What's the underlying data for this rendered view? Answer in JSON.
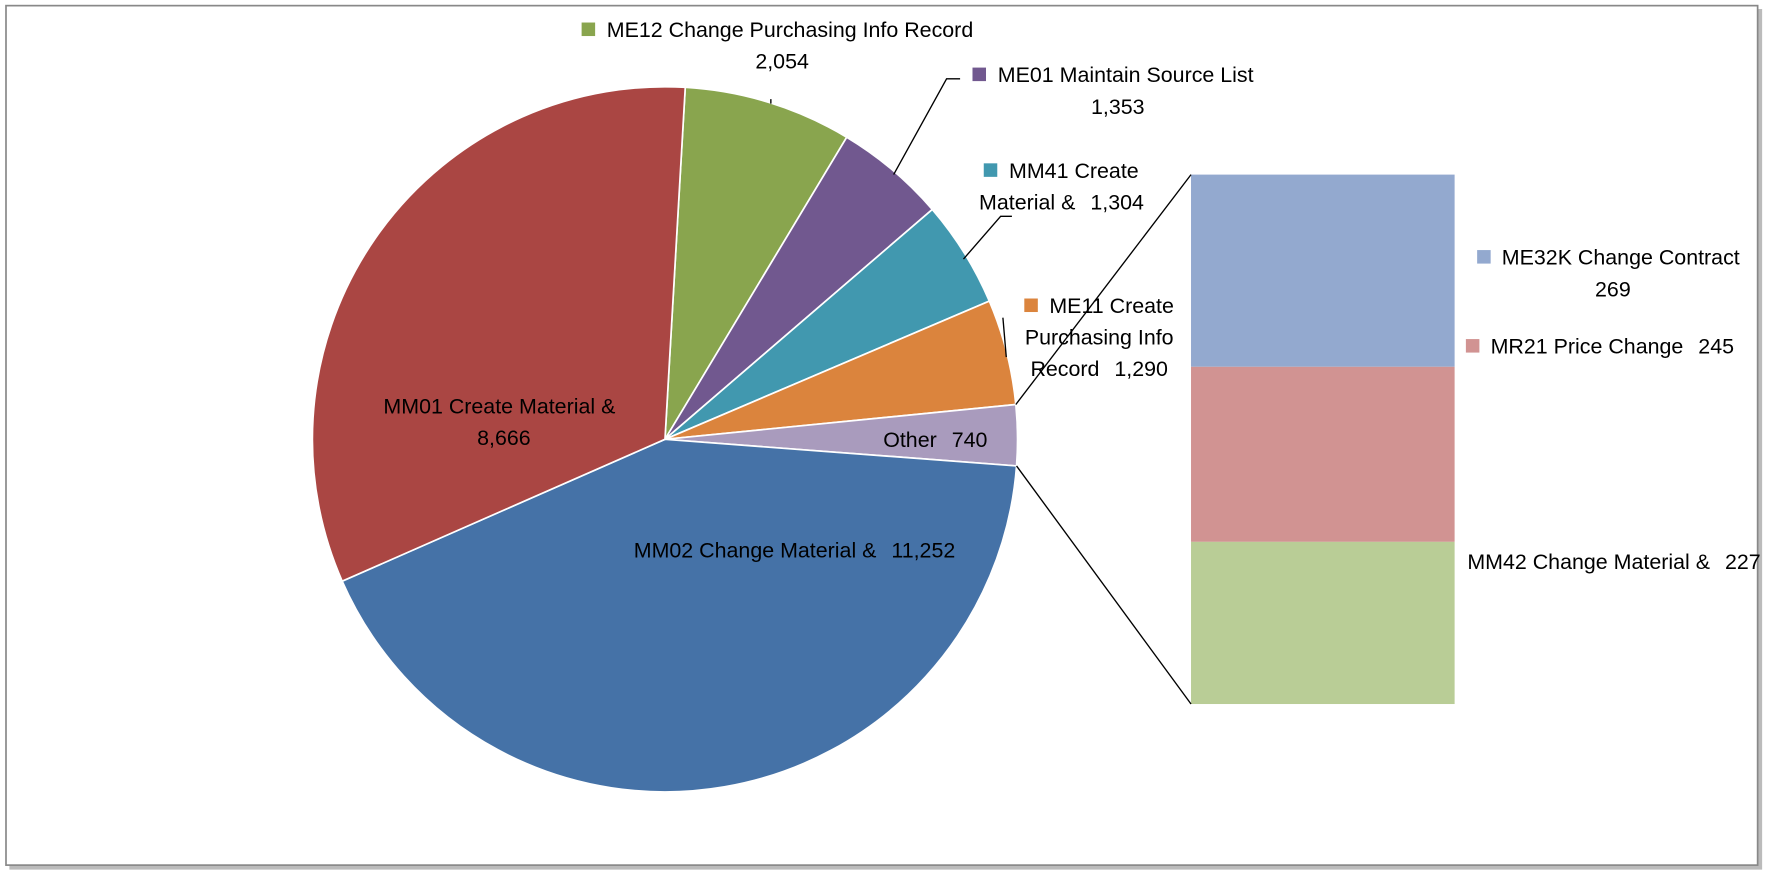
{
  "chart_data": {
    "type": "pie",
    "categories": [
      "ME12 Change Purchasing Info Record",
      "ME01 Maintain Source List",
      "MM41 Create Material &",
      "ME11 Create Purchasing Info Record",
      "Other",
      "MM02 Change Material &",
      "MM01 Create Material &"
    ],
    "values": [
      2054,
      1353,
      1304,
      1290,
      740,
      11252,
      8666
    ],
    "value_labels": [
      "2,054",
      "1,353",
      "1,304",
      "1,290",
      "740",
      "11,252",
      "8,666"
    ],
    "colors": [
      "#89a54e",
      "#71588f",
      "#4198af",
      "#db843d",
      "#a99bbd",
      "#4572a7",
      "#aa4643"
    ],
    "breakdown": {
      "type": "bar",
      "categories": [
        "ME32K Change Contract",
        "MR21 Price Change",
        "MM42 Change Material &"
      ],
      "values": [
        269,
        245,
        227
      ],
      "colors": [
        "#93a9cf",
        "#d19392",
        "#b9cd96"
      ]
    }
  }
}
